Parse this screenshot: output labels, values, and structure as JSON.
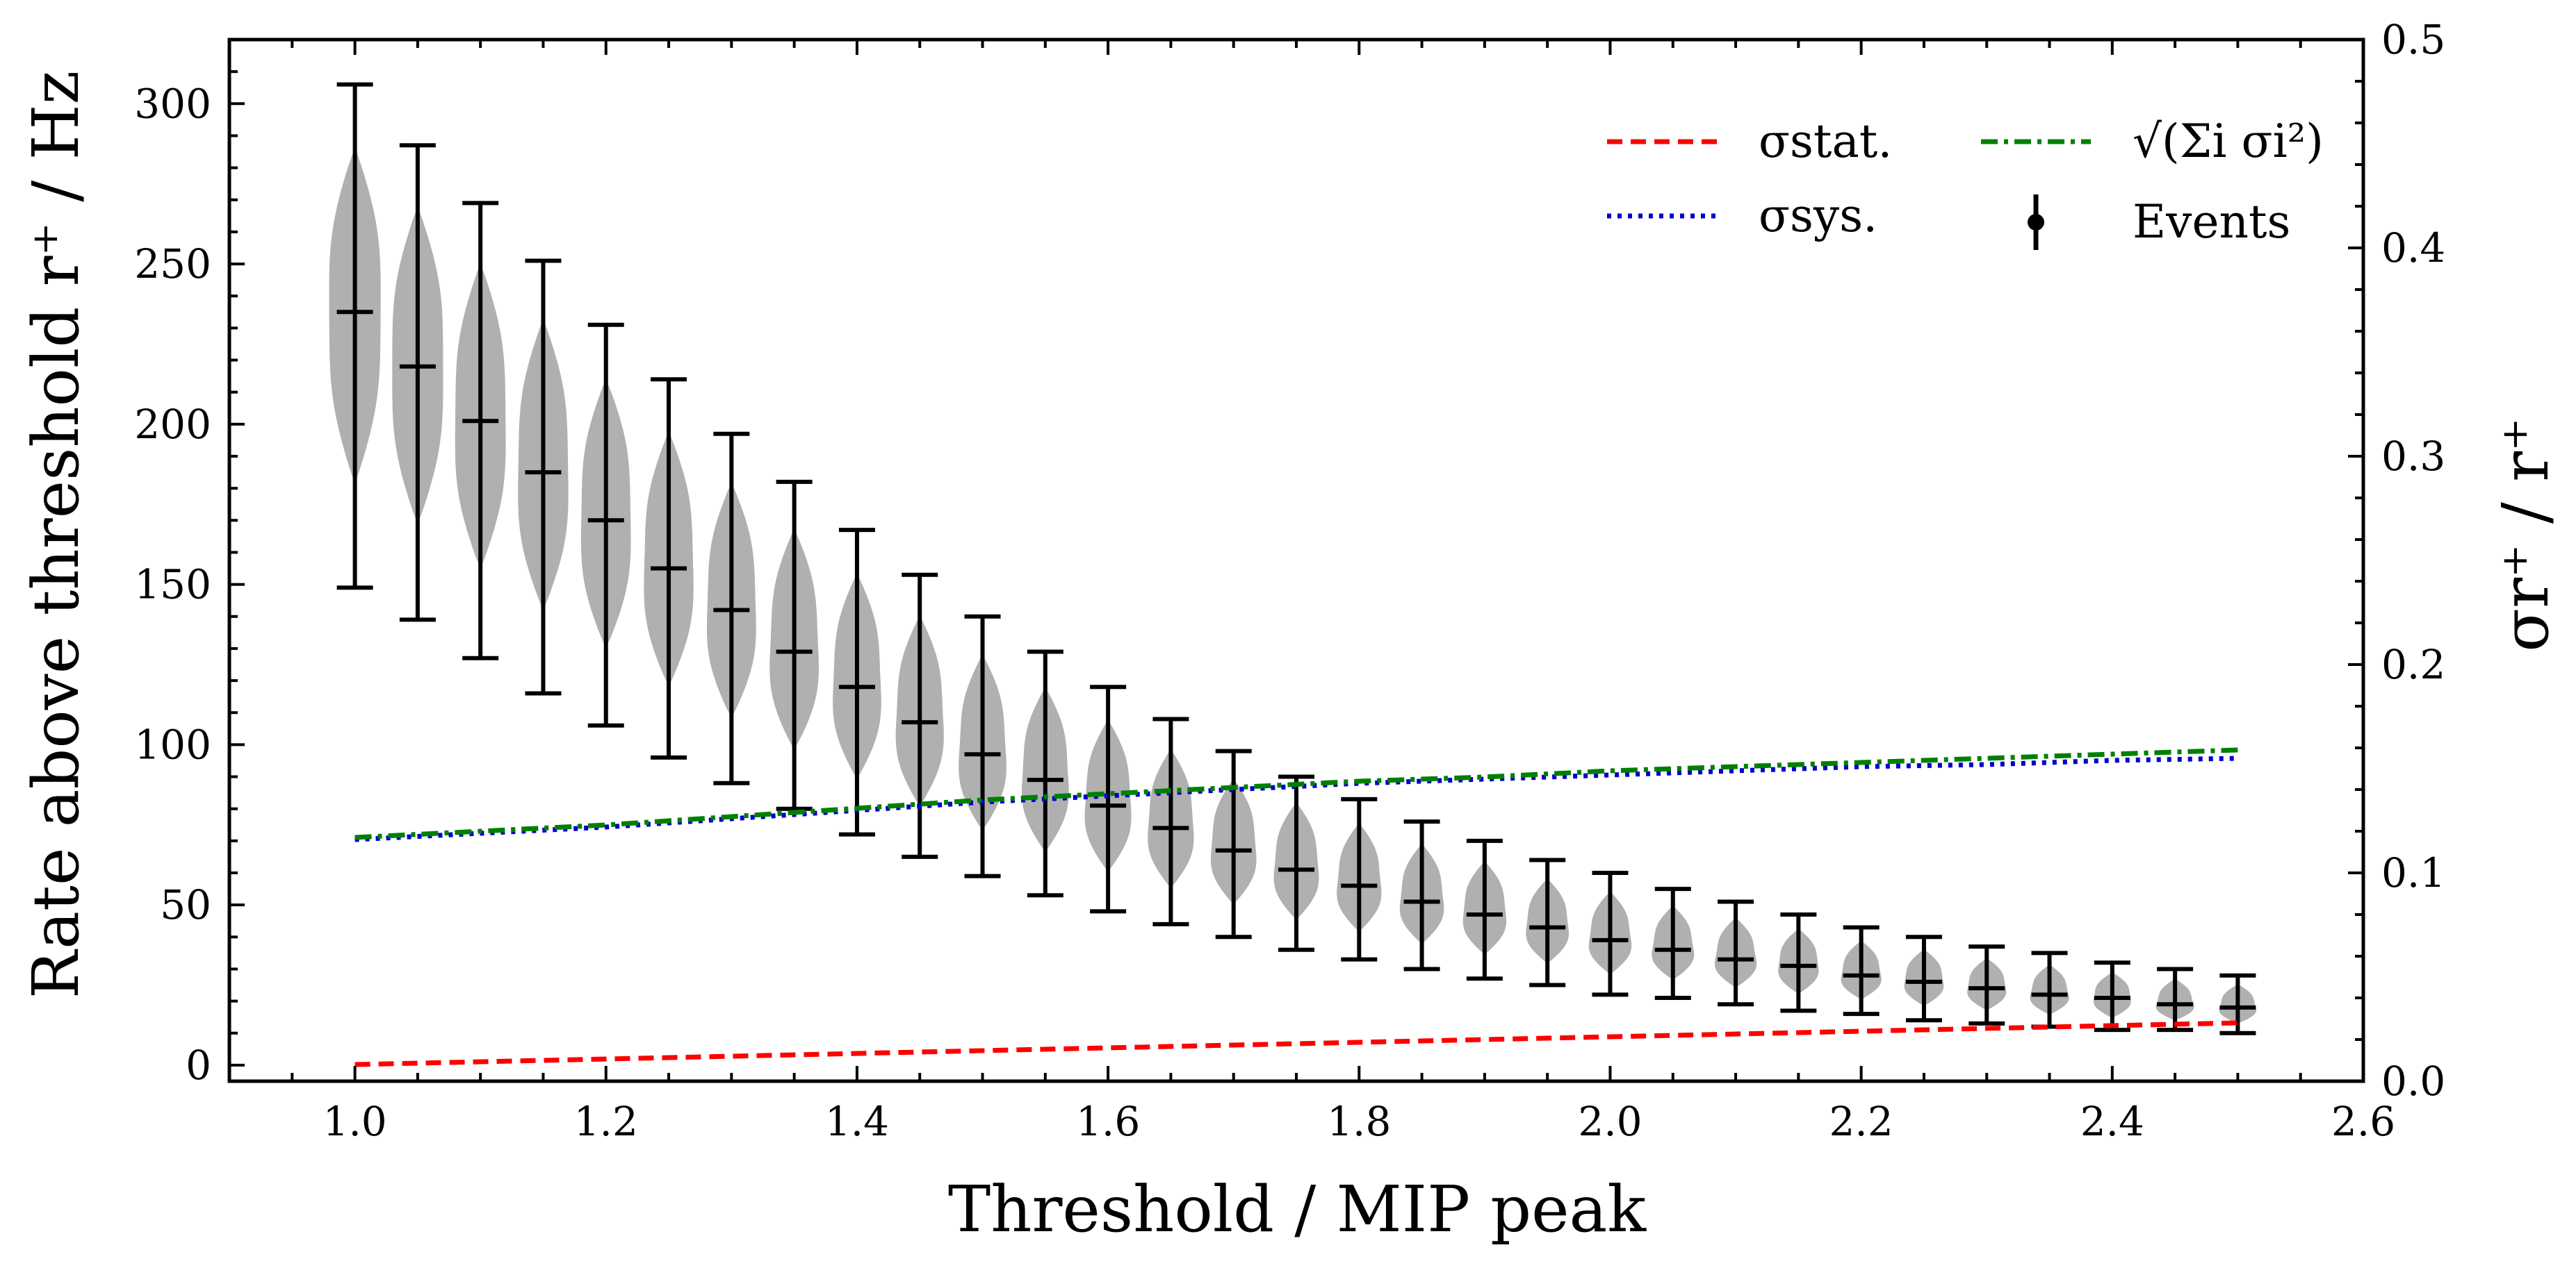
{
  "chart_data": {
    "type": "violin",
    "xlabel": "Threshold / MIP peak",
    "ylabel_left": "Rate above threshold r⁺ / Hz",
    "ylabel_right": "σr⁺ / r⁺",
    "xlim": [
      0.9,
      2.6
    ],
    "ylim_left": [
      -5,
      320
    ],
    "ylim_right": [
      0.0,
      0.5
    ],
    "xticks": [
      "1.0",
      "1.2",
      "1.4",
      "1.6",
      "1.8",
      "2.0",
      "2.2",
      "2.4",
      "2.6"
    ],
    "yticks_left": [
      "0",
      "50",
      "100",
      "150",
      "200",
      "250",
      "300"
    ],
    "yticks_right": [
      "0.0",
      "0.1",
      "0.2",
      "0.3",
      "0.4",
      "0.5"
    ],
    "legend_position": "top-right",
    "legend": {
      "stat": "σstat.",
      "sys": "σsys.",
      "total": "√(Σi σi²)",
      "events": "Events"
    },
    "colors": {
      "violin": "#b0b0b0",
      "errorbar": "#000000",
      "stat": "#ff0000",
      "sys": "#0000cc",
      "total": "#008000"
    },
    "x": [
      1.0,
      1.05,
      1.1,
      1.15,
      1.2,
      1.25,
      1.3,
      1.35,
      1.4,
      1.45,
      1.5,
      1.55,
      1.6,
      1.65,
      1.7,
      1.75,
      1.8,
      1.85,
      1.9,
      1.95,
      2.0,
      2.05,
      2.1,
      2.15,
      2.2,
      2.25,
      2.3,
      2.35,
      2.4,
      2.45,
      2.5
    ],
    "events": {
      "median": [
        235,
        218,
        201,
        185,
        170,
        155,
        142,
        129,
        118,
        107,
        97,
        89,
        81,
        74,
        67,
        61,
        56,
        51,
        47,
        43,
        39,
        36,
        33,
        31,
        28,
        26,
        24,
        22,
        21,
        19,
        18
      ],
      "err_low": [
        149,
        139,
        127,
        116,
        106,
        96,
        88,
        80,
        72,
        65,
        59,
        53,
        48,
        44,
        40,
        36,
        33,
        30,
        27,
        25,
        22,
        21,
        19,
        17,
        16,
        14,
        13,
        12,
        11,
        11,
        10
      ],
      "err_high": [
        306,
        287,
        269,
        251,
        231,
        214,
        197,
        182,
        167,
        153,
        140,
        129,
        118,
        108,
        98,
        90,
        83,
        76,
        70,
        64,
        60,
        55,
        51,
        47,
        43,
        40,
        37,
        35,
        32,
        30,
        28
      ]
    },
    "series": [
      {
        "name": "σstat.",
        "x": [
          1.0,
          2.5
        ],
        "y": [
          0.008,
          0.028
        ]
      },
      {
        "name": "σsys.",
        "x": [
          1.0,
          1.1,
          1.2,
          1.3,
          1.4,
          1.5,
          1.6,
          1.7,
          1.8,
          1.9,
          2.0,
          2.1,
          2.2,
          2.3,
          2.4,
          2.5
        ],
        "y": [
          0.116,
          0.119,
          0.122,
          0.126,
          0.13,
          0.134,
          0.137,
          0.14,
          0.143,
          0.145,
          0.147,
          0.149,
          0.151,
          0.152,
          0.154,
          0.155
        ]
      },
      {
        "name": "√(Σi σi²)",
        "x": [
          1.0,
          1.1,
          1.2,
          1.3,
          1.4,
          1.5,
          1.6,
          1.7,
          1.8,
          1.9,
          2.0,
          2.1,
          2.2,
          2.3,
          2.4,
          2.5
        ],
        "y": [
          0.117,
          0.12,
          0.123,
          0.127,
          0.131,
          0.135,
          0.138,
          0.141,
          0.144,
          0.146,
          0.149,
          0.151,
          0.153,
          0.155,
          0.157,
          0.159
        ]
      }
    ]
  }
}
